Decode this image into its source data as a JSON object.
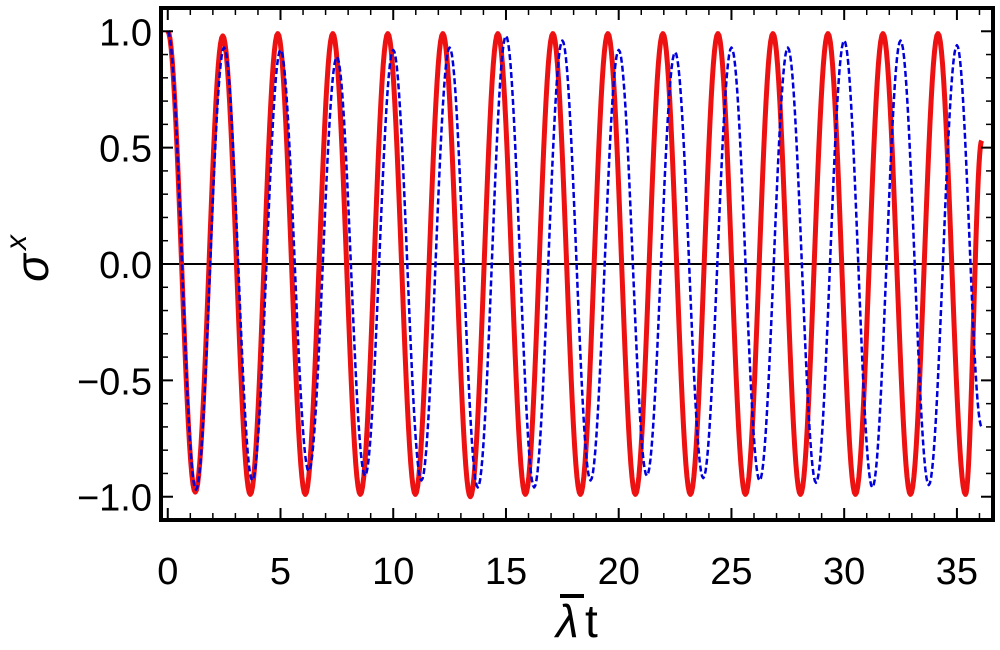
{
  "chart_data": {
    "type": "line",
    "title": "",
    "xlabel": "λt",
    "xlabel_overbar": true,
    "ylabel": "σ",
    "ylabel_superscript": "x",
    "xlim": [
      -0.3,
      36.6
    ],
    "ylim": [
      -1.1,
      1.1
    ],
    "xticks": [
      0,
      5,
      10,
      15,
      20,
      25,
      30,
      35
    ],
    "xtick_labels": [
      "0",
      "5",
      "10",
      "15",
      "20",
      "25",
      "30",
      "35"
    ],
    "yticks": [
      -1.0,
      -0.5,
      0.0,
      0.5,
      1.0
    ],
    "ytick_labels": [
      "−1.0",
      "−0.5",
      "0.0",
      "0.5",
      "1.0"
    ],
    "zero_line": true,
    "grid": false,
    "legend": "none",
    "series": [
      {
        "style": "solid",
        "color": "#ee1111",
        "x": [
          0,
          1.22,
          2.44,
          3.66,
          4.88,
          6.1,
          7.32,
          8.54,
          9.76,
          10.98,
          12.2,
          13.42,
          14.64,
          15.86,
          17.08,
          18.3,
          19.52,
          20.74,
          21.96,
          23.18,
          24.4,
          25.62,
          26.84,
          28.06,
          29.28,
          30.5,
          31.72,
          32.94,
          34.16,
          35.38,
          36.1
        ],
        "y": [
          1.0,
          -0.98,
          0.98,
          -0.99,
          0.99,
          -0.99,
          0.99,
          -0.99,
          0.99,
          -0.99,
          0.99,
          -1.0,
          0.99,
          -0.99,
          0.99,
          -0.99,
          0.99,
          -0.99,
          0.99,
          -0.99,
          0.99,
          -0.99,
          0.99,
          -0.99,
          0.99,
          -0.99,
          0.99,
          -0.99,
          0.99,
          -0.99,
          0.53
        ]
      },
      {
        "style": "dashed",
        "color": "#0000dd",
        "x": [
          0,
          1.25,
          2.5,
          3.75,
          5.0,
          6.25,
          7.5,
          8.75,
          10.0,
          11.25,
          12.5,
          13.75,
          15.0,
          16.25,
          17.5,
          18.75,
          20.0,
          21.25,
          22.5,
          23.75,
          25.0,
          26.25,
          27.5,
          28.75,
          30.0,
          31.25,
          32.5,
          33.75,
          35.0,
          36.1
        ],
        "y": [
          1.0,
          -0.97,
          0.93,
          -0.93,
          0.92,
          -0.89,
          0.89,
          -0.91,
          0.92,
          -0.93,
          0.93,
          -0.96,
          0.98,
          -0.96,
          0.96,
          -0.93,
          0.92,
          -0.91,
          0.91,
          -0.92,
          0.93,
          -0.93,
          0.93,
          -0.94,
          0.96,
          -0.96,
          0.96,
          -0.95,
          0.94,
          -0.7
        ]
      }
    ]
  }
}
